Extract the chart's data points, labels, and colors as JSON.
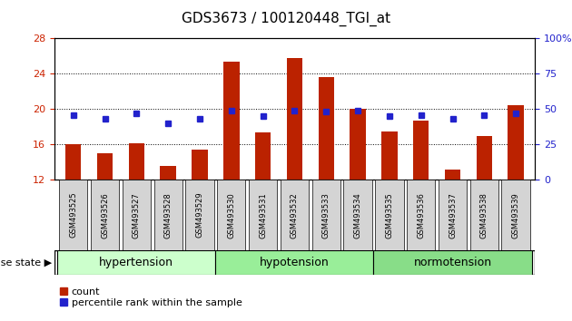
{
  "title": "GDS3673 / 100120448_TGI_at",
  "samples": [
    "GSM493525",
    "GSM493526",
    "GSM493527",
    "GSM493528",
    "GSM493529",
    "GSM493530",
    "GSM493531",
    "GSM493532",
    "GSM493533",
    "GSM493534",
    "GSM493535",
    "GSM493536",
    "GSM493537",
    "GSM493538",
    "GSM493539"
  ],
  "counts": [
    16.0,
    15.0,
    16.1,
    13.6,
    15.4,
    25.4,
    17.4,
    25.8,
    23.6,
    20.0,
    17.5,
    18.7,
    13.2,
    17.0,
    20.4
  ],
  "percentiles": [
    46,
    43,
    47,
    40,
    43,
    49,
    45,
    49,
    48,
    49,
    45,
    46,
    43,
    46,
    47
  ],
  "bar_color": "#bb2200",
  "dot_color": "#2222cc",
  "ylim_left": [
    12,
    28
  ],
  "ylim_right": [
    0,
    100
  ],
  "yticks_left": [
    12,
    16,
    20,
    24,
    28
  ],
  "yticks_right": [
    0,
    25,
    50,
    75,
    100
  ],
  "group_labels": [
    "hypertension",
    "hypotension",
    "normotension"
  ],
  "group_indices": [
    [
      0,
      1,
      2,
      3,
      4
    ],
    [
      5,
      6,
      7,
      8,
      9
    ],
    [
      10,
      11,
      12,
      13,
      14
    ]
  ],
  "group_colors": [
    "#ccffcc",
    "#99ee99",
    "#88dd88"
  ],
  "group_label_text": "disease state",
  "legend_count": "count",
  "legend_pct": "percentile rank within the sample",
  "bar_width": 0.5,
  "tick_color_left": "#cc2200",
  "tick_color_right": "#2222cc"
}
